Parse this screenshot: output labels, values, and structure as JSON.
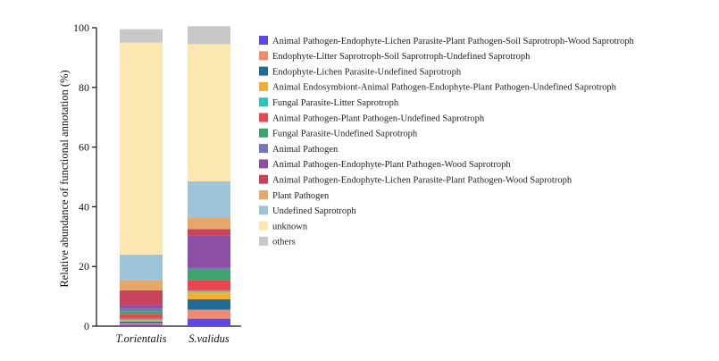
{
  "chart_data": {
    "type": "bar",
    "stacked": true,
    "title": "",
    "xlabel": "",
    "ylabel": "Relative abundance of functional annotation (%)",
    "ylim": [
      0,
      100
    ],
    "yticks": [
      0,
      20,
      40,
      60,
      80,
      100
    ],
    "grid": false,
    "legend_position": "right",
    "categories": [
      "T.orientalis",
      "S.validus"
    ],
    "series": [
      {
        "name": "Animal Pathogen-Endophyte-Lichen Parasite-Plant Pathogen-Soil Saprotroph-Wood Saprotroph",
        "color": "#5b49e6",
        "values": [
          0.5,
          2.5
        ]
      },
      {
        "name": "Endophyte-Litter Saprotroph-Soil Saprotroph-Undefined Saprotroph",
        "color": "#f08a6e",
        "values": [
          0.5,
          3.0
        ]
      },
      {
        "name": "Endophyte-Lichen Parasite-Undefined Saprotroph",
        "color": "#1f6c96",
        "values": [
          0.5,
          3.5
        ]
      },
      {
        "name": "Animal Endosymbiont-Animal Pathogen-Endophyte-Plant Pathogen-Undefined Saprotroph",
        "color": "#f2ad34",
        "values": [
          0.5,
          2.5
        ]
      },
      {
        "name": "Fungal Parasite-Litter Saprotroph",
        "color": "#2ec4bb",
        "values": [
          0.5,
          0.5
        ]
      },
      {
        "name": "Animal Pathogen-Plant Pathogen-Undefined Saprotroph",
        "color": "#e8474f",
        "values": [
          1.5,
          3.5
        ]
      },
      {
        "name": "Fungal Parasite-Undefined Saprotroph",
        "color": "#3ea46e",
        "values": [
          1.0,
          3.5
        ]
      },
      {
        "name": "Animal Pathogen",
        "color": "#7377b2",
        "values": [
          1.0,
          0.5
        ]
      },
      {
        "name": "Animal Pathogen-Endophyte-Plant Pathogen-Wood Saprotroph",
        "color": "#8d4fa5",
        "values": [
          1.0,
          11.0
        ]
      },
      {
        "name": "Animal Pathogen-Endophyte-Lichen Parasite-Plant Pathogen-Wood Saprotroph",
        "color": "#c8435c",
        "values": [
          5.0,
          2.0
        ]
      },
      {
        "name": "Plant Pathogen",
        "color": "#e5a76a",
        "values": [
          3.5,
          4.0
        ]
      },
      {
        "name": "Undefined Saprotroph",
        "color": "#9ec4d9",
        "values": [
          8.5,
          12.0
        ]
      },
      {
        "name": "unknown",
        "color": "#fde7b1",
        "values": [
          71.0,
          46.0
        ]
      },
      {
        "name": "others",
        "color": "#c8c8c8",
        "values": [
          4.5,
          6.0
        ]
      }
    ]
  }
}
